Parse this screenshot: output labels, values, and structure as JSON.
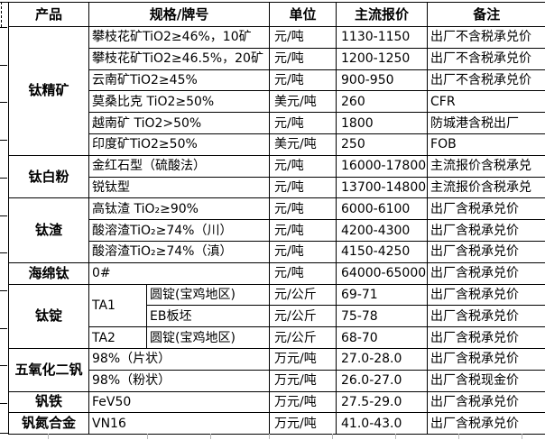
{
  "table": {
    "headers": [
      "产品",
      "规格/牌号",
      "单位",
      "主流报价",
      "备注"
    ],
    "groups": [
      {
        "name": "钛精矿"
      },
      {
        "name": "钛白粉"
      },
      {
        "name": "钛渣"
      },
      {
        "name": "海绵钛"
      },
      {
        "name": "钛锭"
      },
      {
        "name": "五氧化二钒"
      },
      {
        "name": "钒铁"
      },
      {
        "name": "钒氮合金"
      }
    ],
    "rows": [
      {
        "spec": "攀枝花矿TiO2≥46%，10矿",
        "unit": "元/吨",
        "price": "1130-1150",
        "note": "出厂不含税承兑价"
      },
      {
        "spec": "攀枝花矿TiO2≥46.5%，20矿",
        "unit": "元/吨",
        "price": "1200-1250",
        "note": "出厂不含税承兑价"
      },
      {
        "spec": "云南矿TiO2≥45%",
        "unit": "元/吨",
        "price": "900-950",
        "note": "出厂不含税承兑价"
      },
      {
        "spec": "莫桑比克 TiO2≥50%",
        "unit": "美元/吨",
        "price": "260",
        "note": "CFR"
      },
      {
        "spec": "越南矿 TiO2>50%",
        "unit": "元/吨",
        "price": "1800",
        "note": "防城港含税出厂"
      },
      {
        "spec": "印度矿TiO2≥50%",
        "unit": "美元/吨",
        "price": "250",
        "note": "FOB"
      },
      {
        "spec": "金红石型（硫酸法）",
        "unit": "元/吨",
        "price": "16000-17800",
        "note": "主流报价含税承兑"
      },
      {
        "spec": "锐钛型",
        "unit": "元/吨",
        "price": "13700-14800",
        "note": "主流报价含税承兑"
      },
      {
        "spec": "高钛渣 TiO₂≥90%",
        "unit": "元/吨",
        "price": "6000-6100",
        "note": "出厂含税承兑价"
      },
      {
        "spec": "酸溶渣TiO₂≥74%（川）",
        "unit": "元/吨",
        "price": "4200-4300",
        "note": "出厂含税承兑价"
      },
      {
        "spec": "酸溶渣TiO₂≥74%（滇）",
        "unit": "元/吨",
        "price": "4150-4250",
        "note": "出厂含税承兑价"
      },
      {
        "spec": "0#",
        "unit": "元/吨",
        "price": "64000-65000",
        "note": "出厂含税承兑价"
      },
      {
        "spec1": "TA1",
        "spec2": "圆锭(宝鸡地区)",
        "unit": "元/公斤",
        "price": "69-71",
        "note": "出厂含税承兑价"
      },
      {
        "spec2": "EB板坯",
        "unit": "元/公斤",
        "price": "75-78",
        "note": "出厂含税承兑价"
      },
      {
        "spec1": "TA2",
        "spec2": "圆锭(宝鸡地区)",
        "unit": "元/公斤",
        "price": "68-70",
        "note": "出厂含税承兑价"
      },
      {
        "spec": "98%（片状）",
        "unit": "万元/吨",
        "price": "27.0-28.0",
        "note": "出厂含税承兑价"
      },
      {
        "spec": "98%（粉状）",
        "unit": "万元/吨",
        "price": "26.0-27.0",
        "note": "出厂含税现金价"
      },
      {
        "spec": "FeV50",
        "unit": "万元/吨",
        "price": "27.5-29.0",
        "note": "出厂含税承兑价"
      },
      {
        "spec": "VN16",
        "unit": "万元/吨",
        "price": "41.0-43.0",
        "note": "出厂含税承兑价"
      }
    ]
  },
  "colors": {
    "grid_border": "#000000",
    "background": "#ffffff",
    "text": "#000000",
    "faint_gridline": "#b8b8b8"
  }
}
